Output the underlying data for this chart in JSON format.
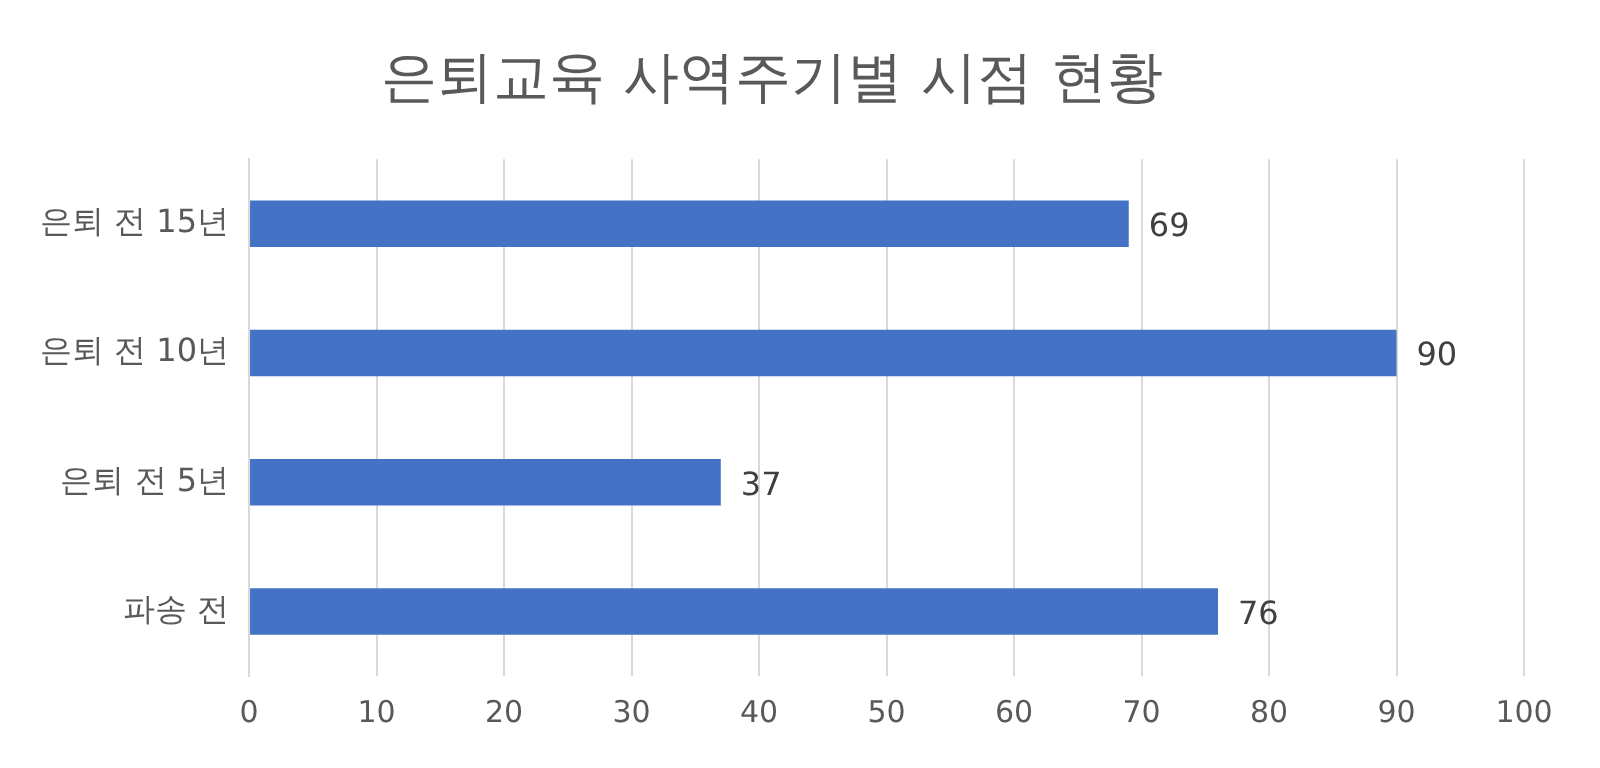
{
  "chart_data": {
    "type": "bar",
    "orientation": "horizontal",
    "title": "은퇴교육 사역주기별 시점 현황",
    "categories": [
      "은퇴 전 15년",
      "은퇴 전 10년",
      "은퇴 전 5년",
      "파송 전"
    ],
    "values": [
      69,
      90,
      37,
      76
    ],
    "color": "#4472c4",
    "xlim": [
      0,
      100
    ],
    "xticks": [
      0,
      10,
      20,
      30,
      40,
      50,
      60,
      70,
      80,
      90,
      100
    ],
    "grid": "x",
    "data_labels": true
  }
}
